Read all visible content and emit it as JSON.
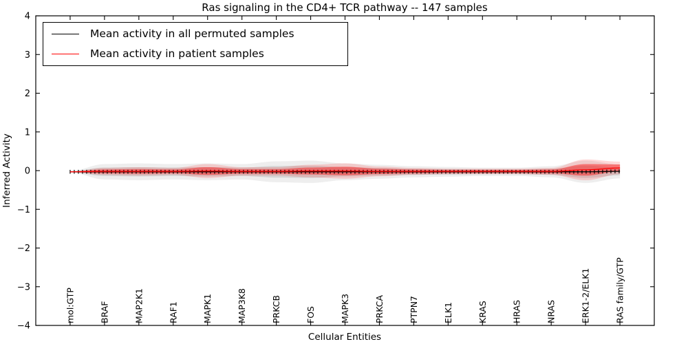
{
  "figure": {
    "title": "Ras signaling in the CD4+ TCR pathway -- 147 samples",
    "xlabel": "Cellular Entities",
    "ylabel": "Inferred Activity"
  },
  "legend": {
    "items": [
      {
        "label": "Mean activity in all permuted samples",
        "color": "#000000"
      },
      {
        "label": "Mean activity in patient samples",
        "color": "#ff0000"
      }
    ]
  },
  "chart_data": {
    "type": "line",
    "title": "Ras signaling in the CD4+ TCR pathway -- 147 samples",
    "xlabel": "Cellular Entities",
    "ylabel": "Inferred Activity",
    "ylim": [
      -4,
      4
    ],
    "ytick_values": [
      4,
      3,
      2,
      1,
      0,
      -1,
      -2,
      -3,
      -4
    ],
    "ytick_labels": [
      "4",
      "3",
      "2",
      "1",
      "0",
      "−1",
      "−2",
      "−3",
      "−4"
    ],
    "grid": false,
    "legend_position": "upper-left",
    "categories": [
      "mol:GTP",
      "BRAF",
      "MAP2K1",
      "RAF1",
      "MAPK1",
      "MAP3K8",
      "PRKCB",
      "FOS",
      "MAPK3",
      "PRKCA",
      "PTPN7",
      "ELK1",
      "KRAS",
      "HRAS",
      "NRAS",
      "ERK1-2/ELK1",
      "RAS family/GTP"
    ],
    "series": [
      {
        "name": "Mean activity in all permuted samples",
        "color": "#000000",
        "marker": "|",
        "values": [
          -0.03,
          -0.03,
          -0.03,
          -0.03,
          -0.03,
          -0.03,
          -0.03,
          -0.03,
          -0.03,
          -0.03,
          -0.03,
          -0.03,
          -0.03,
          -0.03,
          -0.03,
          -0.03,
          -0.02
        ]
      },
      {
        "name": "Mean activity in patient samples",
        "color": "#ff0000",
        "marker": null,
        "values": [
          -0.03,
          -0.02,
          -0.02,
          -0.02,
          -0.01,
          -0.02,
          -0.02,
          -0.01,
          -0.01,
          -0.02,
          -0.02,
          -0.02,
          -0.02,
          -0.02,
          -0.02,
          0.02,
          0.07
        ]
      }
    ],
    "bands": [
      {
        "name": "permuted-std-band",
        "series": 0,
        "std": [
          0.01,
          0.11,
          0.12,
          0.11,
          0.12,
          0.11,
          0.15,
          0.16,
          0.12,
          0.1,
          0.08,
          0.07,
          0.06,
          0.06,
          0.08,
          0.16,
          0.1
        ],
        "layers": [
          {
            "scale": 1.8,
            "fill": "rgba(90,90,90,0.10)"
          },
          {
            "scale": 1.0,
            "fill": "rgba(90,90,90,0.16)"
          }
        ]
      },
      {
        "name": "patient-std-band",
        "series": 1,
        "std": [
          0.005,
          0.05,
          0.06,
          0.05,
          0.1,
          0.06,
          0.06,
          0.09,
          0.11,
          0.07,
          0.05,
          0.04,
          0.04,
          0.04,
          0.05,
          0.15,
          0.09
        ],
        "layers": [
          {
            "scale": 1.8,
            "fill": "rgba(255,0,0,0.15)"
          },
          {
            "scale": 1.0,
            "fill": "rgba(255,0,0,0.42)"
          }
        ]
      }
    ]
  }
}
